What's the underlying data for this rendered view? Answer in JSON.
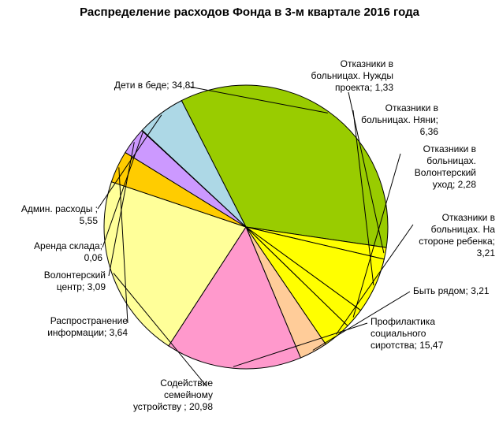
{
  "chart_data": {
    "type": "pie",
    "title": "Распределение расходов Фонда в 3-м квартале 2016 года",
    "slices": [
      {
        "label": "Дети в беде; 34,81",
        "value": 34.81,
        "color": "#99cc00"
      },
      {
        "label": "Отказники в\nбольницах. Нужды\nпроекта; 1,33",
        "value": 1.33,
        "color": "#ffff00"
      },
      {
        "label": "Отказники в\nбольницах. Няни;\n6,36",
        "value": 6.36,
        "color": "#ffff00"
      },
      {
        "label": "Отказники в\nбольницах.\nВолонтерский\nуход; 2,28",
        "value": 2.28,
        "color": "#ffff00"
      },
      {
        "label": "Отказники в\nбольницах. На\nстороне ребенка;\n3,21",
        "value": 3.21,
        "color": "#ffff00"
      },
      {
        "label": "Быть рядом; 3,21",
        "value": 3.21,
        "color": "#ffcc99"
      },
      {
        "label": "Профилактика\nсоциального\nсиротства; 15,47",
        "value": 15.47,
        "color": "#ff99cc"
      },
      {
        "label": "Содействие\nсемейному\nустройству ; 20,98",
        "value": 20.98,
        "color": "#ffff99"
      },
      {
        "label": "Распространение\nинформации; 3,64",
        "value": 3.64,
        "color": "#ffcc00"
      },
      {
        "label": "Волонтерский\nцентр; 3,09",
        "value": 3.09,
        "color": "#cc99ff"
      },
      {
        "label": "Аренда склада;\n0,06",
        "value": 0.06,
        "color": "#000080"
      },
      {
        "label": "Админ. расходы ;\n5,55",
        "value": 5.55,
        "color": "#add8e6"
      }
    ],
    "start_angle_deg": 333,
    "direction": "clockwise",
    "legend": "none"
  }
}
